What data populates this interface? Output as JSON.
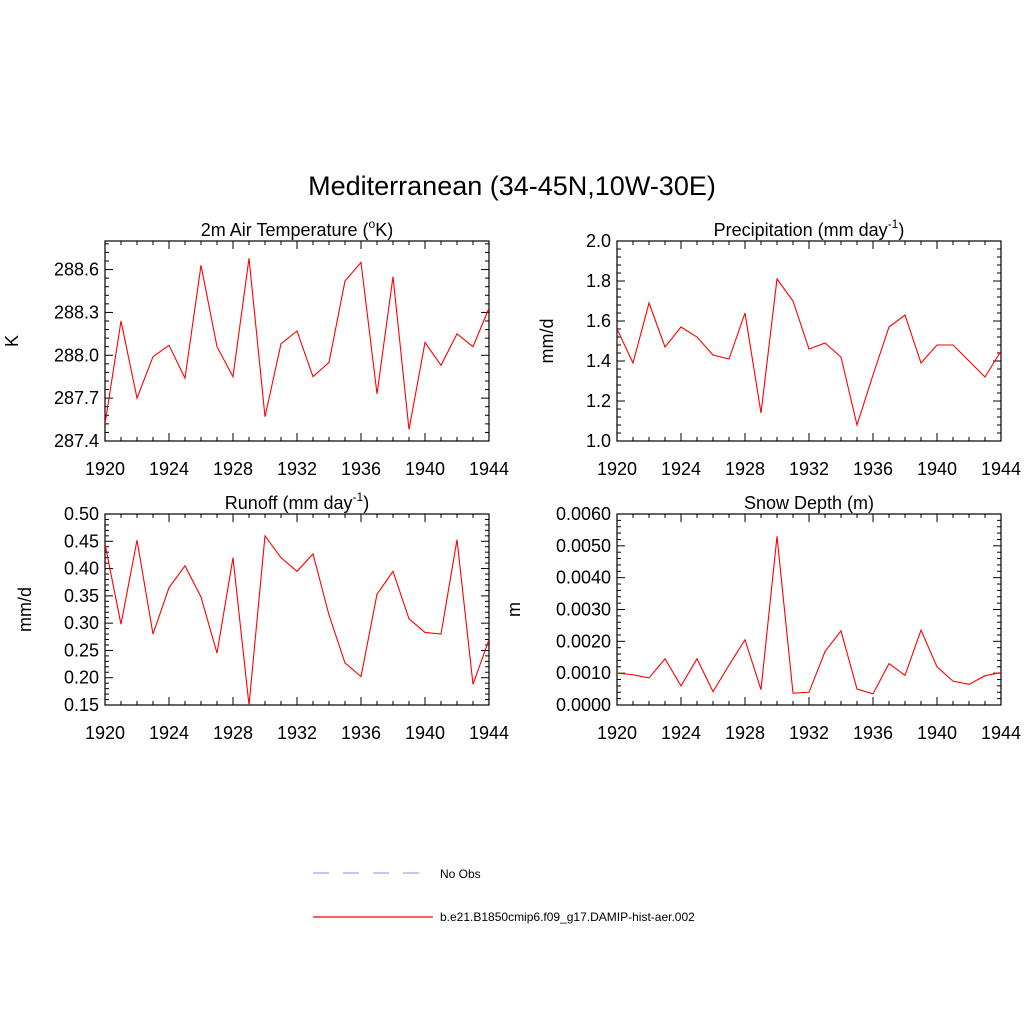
{
  "page": {
    "title": "Mediterranean (34-45N,10W-30E)"
  },
  "colors": {
    "series_line": "#ff0000",
    "obs_line": "#a0a0ff",
    "axis": "#000000",
    "background": "#ffffff"
  },
  "legend": {
    "items": [
      {
        "label": "No Obs",
        "style": "dashed",
        "color": "#a0a0ff"
      },
      {
        "label": "b.e21.B1850cmip6.f09_g17.DAMIP-hist-aer.002",
        "style": "solid",
        "color": "#ff0000"
      }
    ]
  },
  "chart_data": [
    {
      "type": "line",
      "title": "2m Air Temperature (",
      "title_sup": "o",
      "title_after": "K)",
      "ylabel": "K",
      "xlabel": "",
      "xlim": [
        1920,
        1944
      ],
      "ylim": [
        287.4,
        288.8
      ],
      "xticks": [
        "1920",
        "1924",
        "1928",
        "1932",
        "1936",
        "1940",
        "1944"
      ],
      "yticks": [
        "287.4",
        "287.7",
        "288.0",
        "288.3",
        "288.6"
      ],
      "x": [
        1920,
        1921,
        1922,
        1923,
        1924,
        1925,
        1926,
        1927,
        1928,
        1929,
        1930,
        1931,
        1932,
        1933,
        1934,
        1935,
        1936,
        1937,
        1938,
        1939,
        1940,
        1941,
        1942,
        1943,
        1944
      ],
      "series": [
        {
          "name": "b.e21.B1850cmip6.f09_g17.DAMIP-hist-aer.002",
          "values": [
            287.52,
            288.24,
            287.7,
            287.99,
            288.07,
            287.84,
            288.63,
            288.06,
            287.85,
            288.68,
            287.57,
            288.08,
            288.17,
            287.85,
            287.95,
            288.52,
            288.65,
            287.73,
            288.55,
            287.48,
            288.09,
            287.93,
            288.15,
            288.06,
            288.33
          ]
        }
      ]
    },
    {
      "type": "line",
      "title": "Precipitation (mm day",
      "title_sup": "-1",
      "title_after": ")",
      "ylabel": "mm/d",
      "xlabel": "",
      "xlim": [
        1920,
        1944
      ],
      "ylim": [
        1.0,
        2.0
      ],
      "xticks": [
        "1920",
        "1924",
        "1928",
        "1932",
        "1936",
        "1940",
        "1944"
      ],
      "yticks": [
        "1.0",
        "1.2",
        "1.4",
        "1.6",
        "1.8",
        "2.0"
      ],
      "x": [
        1920,
        1921,
        1922,
        1923,
        1924,
        1925,
        1926,
        1927,
        1928,
        1929,
        1930,
        1931,
        1932,
        1933,
        1934,
        1935,
        1936,
        1937,
        1938,
        1939,
        1940,
        1941,
        1942,
        1943,
        1944
      ],
      "series": [
        {
          "name": "b.e21.B1850cmip6.f09_g17.DAMIP-hist-aer.002",
          "values": [
            1.56,
            1.39,
            1.69,
            1.47,
            1.57,
            1.52,
            1.43,
            1.41,
            1.64,
            1.14,
            1.81,
            1.7,
            1.46,
            1.49,
            1.42,
            1.08,
            1.33,
            1.57,
            1.63,
            1.39,
            1.48,
            1.48,
            1.4,
            1.32,
            1.45
          ]
        }
      ]
    },
    {
      "type": "line",
      "title": "Runoff (mm day",
      "title_sup": "-1",
      "title_after": ")",
      "ylabel": "mm/d",
      "xlabel": "",
      "xlim": [
        1920,
        1944
      ],
      "ylim": [
        0.15,
        0.5
      ],
      "xticks": [
        "1920",
        "1924",
        "1928",
        "1932",
        "1936",
        "1940",
        "1944"
      ],
      "yticks": [
        "0.15",
        "0.20",
        "0.25",
        "0.30",
        "0.35",
        "0.40",
        "0.45",
        "0.50"
      ],
      "x": [
        1920,
        1921,
        1922,
        1923,
        1924,
        1925,
        1926,
        1927,
        1928,
        1929,
        1930,
        1931,
        1932,
        1933,
        1934,
        1935,
        1936,
        1937,
        1938,
        1939,
        1940,
        1941,
        1942,
        1943,
        1944
      ],
      "series": [
        {
          "name": "b.e21.B1850cmip6.f09_g17.DAMIP-hist-aer.002",
          "values": [
            0.445,
            0.298,
            0.452,
            0.28,
            0.365,
            0.405,
            0.348,
            0.245,
            0.42,
            0.15,
            0.46,
            0.42,
            0.395,
            0.427,
            0.315,
            0.227,
            0.202,
            0.353,
            0.395,
            0.308,
            0.283,
            0.28,
            0.453,
            0.188,
            0.27
          ]
        }
      ]
    },
    {
      "type": "line",
      "title": "Snow Depth (m)",
      "title_sup": "",
      "title_after": "",
      "ylabel": "m",
      "xlabel": "",
      "xlim": [
        1920,
        1944
      ],
      "ylim": [
        0.0,
        0.006
      ],
      "xticks": [
        "1920",
        "1924",
        "1928",
        "1932",
        "1936",
        "1940",
        "1944"
      ],
      "yticks": [
        "0.0000",
        "0.0010",
        "0.0020",
        "0.0030",
        "0.0040",
        "0.0050",
        "0.0060"
      ],
      "x": [
        1920,
        1921,
        1922,
        1923,
        1924,
        1925,
        1926,
        1927,
        1928,
        1929,
        1930,
        1931,
        1932,
        1933,
        1934,
        1935,
        1936,
        1937,
        1938,
        1939,
        1940,
        1941,
        1942,
        1943,
        1944
      ],
      "series": [
        {
          "name": "b.e21.B1850cmip6.f09_g17.DAMIP-hist-aer.002",
          "values": [
            0.001,
            0.00095,
            0.00085,
            0.00145,
            0.0006,
            0.00145,
            0.00042,
            0.00125,
            0.00205,
            0.00048,
            0.0053,
            0.00037,
            0.0004,
            0.00168,
            0.00233,
            0.0005,
            0.00035,
            0.0013,
            0.00093,
            0.00235,
            0.0012,
            0.00075,
            0.00065,
            0.00092,
            0.00102
          ]
        }
      ]
    }
  ]
}
